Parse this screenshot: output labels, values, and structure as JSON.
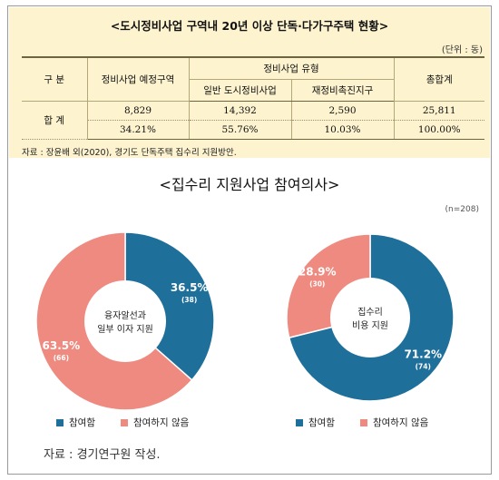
{
  "table": {
    "title": "<도시정비사업 구역내 20년 이상 단독·다가구주택 현황>",
    "unit": "(단위 : 동)",
    "header": {
      "col_gubun": "구 분",
      "col_planned": "정비사업 예정구역",
      "col_type": "정비사업 유형",
      "col_general": "일반 도시정비사업",
      "col_promotion": "재정비촉진지구",
      "col_total": "총합계"
    },
    "row_label": "합 계",
    "counts": [
      "8,829",
      "14,392",
      "2,590",
      "25,811"
    ],
    "shares": [
      "34.21%",
      "55.76%",
      "10.03%",
      "100.00%"
    ],
    "source": "자료 : 장윤배 외(2020), 경기도 단독주택 집수리 지원방안."
  },
  "chart_title": "<집수리 지원사업 참여의사>",
  "n_label": "(n=208)",
  "source": "자료 : 경기연구원 작성.",
  "colors": {
    "participate": "#1f6f9b",
    "not_participate": "#ef8a80"
  },
  "chart_data": [
    {
      "type": "pie",
      "center_label": [
        "융자알선과",
        "일부 이자 지원"
      ],
      "slices": [
        {
          "name": "참여함",
          "percent": 36.5,
          "count": 38,
          "label": "36.5%",
          "count_label": "(38)"
        },
        {
          "name": "참여하지 않음",
          "percent": 63.5,
          "count": 66,
          "label": "63.5%",
          "count_label": "(66)"
        }
      ],
      "legend": [
        "참여함",
        "참여하지 않음"
      ]
    },
    {
      "type": "pie",
      "center_label": [
        "집수리",
        "비용 지원"
      ],
      "slices": [
        {
          "name": "참여함",
          "percent": 71.2,
          "count": 74,
          "label": "71.2%",
          "count_label": "(74)"
        },
        {
          "name": "참여하지 않음",
          "percent": 28.9,
          "count": 30,
          "label": "28.9%",
          "count_label": "(30)"
        }
      ],
      "legend": [
        "참여함",
        "참여하지 않음"
      ]
    }
  ]
}
